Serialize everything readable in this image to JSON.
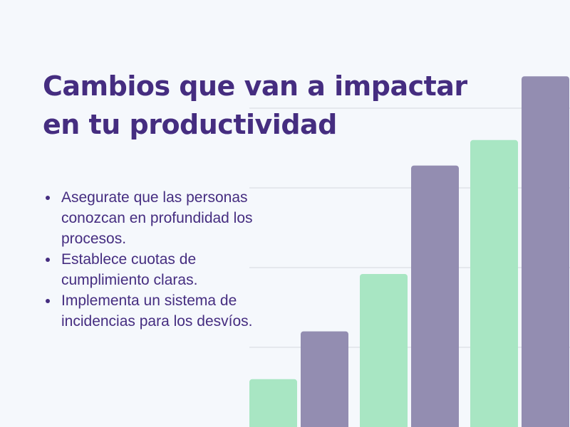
{
  "slide": {
    "title_lines": [
      "Cambios que van a impactar",
      "en tu productividad"
    ],
    "bullets": [
      "Asegurate que las personas conozcan en profundidad los procesos.",
      "Establece cuotas de cumplimiento claras.",
      "Implementa un sistema de incidencias para los desvíos."
    ]
  },
  "chart_data": {
    "type": "bar",
    "title": "",
    "xlabel": "",
    "ylabel": "",
    "categories": [
      "",
      "",
      ""
    ],
    "series": [
      {
        "values": [
          0.15,
          0.48,
          0.9
        ],
        "color": "#a8e6c3"
      },
      {
        "values": [
          0.3,
          0.82,
          1.1
        ],
        "color": "#938db1"
      }
    ],
    "ylim": [
      0,
      1.1
    ],
    "grid": true,
    "gridline_values": [
      0.25,
      0.5,
      0.75,
      1.0
    ],
    "gridline_color": "#d5d8de"
  }
}
